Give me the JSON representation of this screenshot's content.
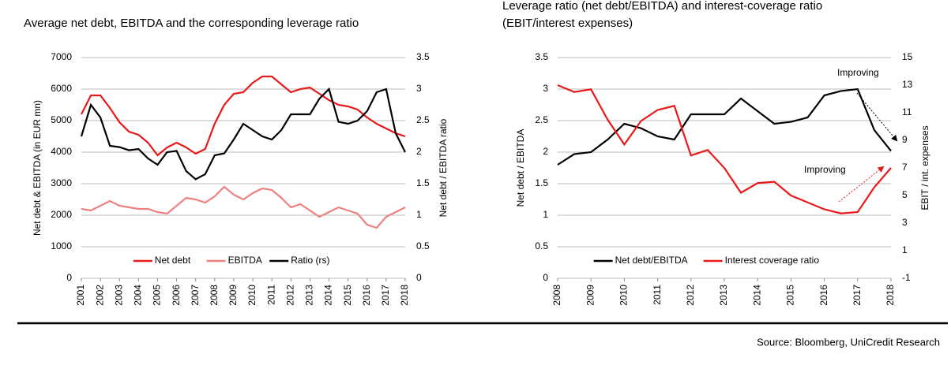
{
  "chart_data": [
    {
      "type": "line",
      "title": "Average net debt, EBITDA and the corresponding leverage ratio",
      "ylabel": "Net debt & EBITDA (in EUR mn)",
      "y2label": "Net debt / EBITDA ratio",
      "x": [
        2001,
        2001.5,
        2002,
        2002.5,
        2003,
        2003.5,
        2004,
        2004.5,
        2005,
        2005.5,
        2006,
        2006.5,
        2007,
        2007.5,
        2008,
        2008.5,
        2009,
        2009.5,
        2010,
        2010.5,
        2011,
        2011.5,
        2012,
        2012.5,
        2013,
        2013.5,
        2014,
        2014.5,
        2015,
        2015.5,
        2016,
        2016.5,
        2017,
        2017.5,
        2018
      ],
      "xlim": [
        2001,
        2018
      ],
      "xticks": [
        2001,
        2002,
        2003,
        2004,
        2005,
        2006,
        2007,
        2008,
        2009,
        2010,
        2011,
        2012,
        2013,
        2014,
        2015,
        2016,
        2017,
        2018
      ],
      "ylim": [
        0,
        7000
      ],
      "yticks": [
        0,
        1000,
        2000,
        3000,
        4000,
        5000,
        6000,
        7000
      ],
      "y2lim": [
        0,
        3.5
      ],
      "y2ticks": [
        0,
        0.5,
        1,
        1.5,
        2,
        2.5,
        3,
        3.5
      ],
      "grid": true,
      "legend": "bottom",
      "series": [
        {
          "name": "Net debt",
          "color": "#e8191a",
          "values": [
            5200,
            5800,
            5800,
            5400,
            4950,
            4650,
            4550,
            4300,
            3900,
            4150,
            4300,
            4150,
            3950,
            4100,
            4900,
            5500,
            5850,
            5900,
            6200,
            6400,
            6400,
            6150,
            5900,
            6000,
            6050,
            5850,
            5650,
            5500,
            5450,
            5350,
            5100,
            4900,
            4750,
            4600,
            4500
          ]
        },
        {
          "name": "EBITDA",
          "color": "#f08080",
          "values": [
            2200,
            2150,
            2300,
            2450,
            2300,
            2250,
            2200,
            2200,
            2100,
            2050,
            2300,
            2550,
            2500,
            2400,
            2600,
            2900,
            2650,
            2500,
            2700,
            2850,
            2800,
            2550,
            2250,
            2350,
            2150,
            1950,
            2100,
            2250,
            2150,
            2050,
            1700,
            1600,
            1950,
            2100,
            2250
          ]
        },
        {
          "name": "Ratio (rs)",
          "color": "#000000",
          "axis": "y2",
          "values": [
            2.25,
            2.75,
            2.55,
            2.1,
            2.08,
            2.03,
            2.05,
            1.9,
            1.8,
            2.0,
            2.02,
            1.7,
            1.57,
            1.65,
            1.95,
            1.98,
            2.2,
            2.45,
            2.35,
            2.25,
            2.2,
            2.35,
            2.6,
            2.6,
            2.6,
            2.85,
            3.0,
            2.48,
            2.45,
            2.5,
            2.65,
            2.95,
            3.0,
            2.3,
            2.0
          ]
        }
      ]
    },
    {
      "type": "line",
      "title": [
        "Leverage ratio (net debt/EBITDA) and interest-coverage ratio",
        "(EBIT/interest expenses)"
      ],
      "ylabel": "Net debt / EBITDA",
      "y2label": "EBIT / int. expenses",
      "x": [
        2008,
        2008.5,
        2009,
        2009.5,
        2010,
        2010.5,
        2011,
        2011.5,
        2012,
        2012.5,
        2013,
        2013.5,
        2014,
        2014.5,
        2015,
        2015.5,
        2016,
        2016.5,
        2017,
        2017.5,
        2018
      ],
      "xlim": [
        2008,
        2018
      ],
      "xticks": [
        2008,
        2009,
        2010,
        2011,
        2012,
        2013,
        2014,
        2015,
        2016,
        2017,
        2018
      ],
      "ylim": [
        0,
        3.5
      ],
      "yticks": [
        0,
        0.5,
        1,
        1.5,
        2,
        2.5,
        3,
        3.5
      ],
      "y2lim": [
        -1,
        15
      ],
      "y2ticks": [
        -1,
        1,
        3,
        5,
        7,
        9,
        11,
        13,
        15
      ],
      "grid": true,
      "legend": "bottom",
      "annotations": [
        "Improving",
        "Improving"
      ],
      "series": [
        {
          "name": "Net debt/EBITDA",
          "color": "#000000",
          "values": [
            1.8,
            1.97,
            2.0,
            2.2,
            2.45,
            2.38,
            2.25,
            2.2,
            2.6,
            2.6,
            2.6,
            2.85,
            2.65,
            2.45,
            2.48,
            2.55,
            2.9,
            2.97,
            3.0,
            2.35,
            2.02
          ]
        },
        {
          "name": "Interest coverage ratio",
          "color": "#e8191a",
          "axis": "y2",
          "values": [
            13.0,
            12.5,
            12.7,
            10.5,
            8.7,
            10.4,
            11.2,
            11.5,
            7.9,
            8.3,
            7.0,
            5.2,
            5.9,
            6.0,
            5.0,
            4.5,
            4.0,
            3.7,
            3.8,
            5.6,
            7.0
          ]
        }
      ]
    }
  ],
  "source": "Source: Bloomberg, UniCredit Research"
}
